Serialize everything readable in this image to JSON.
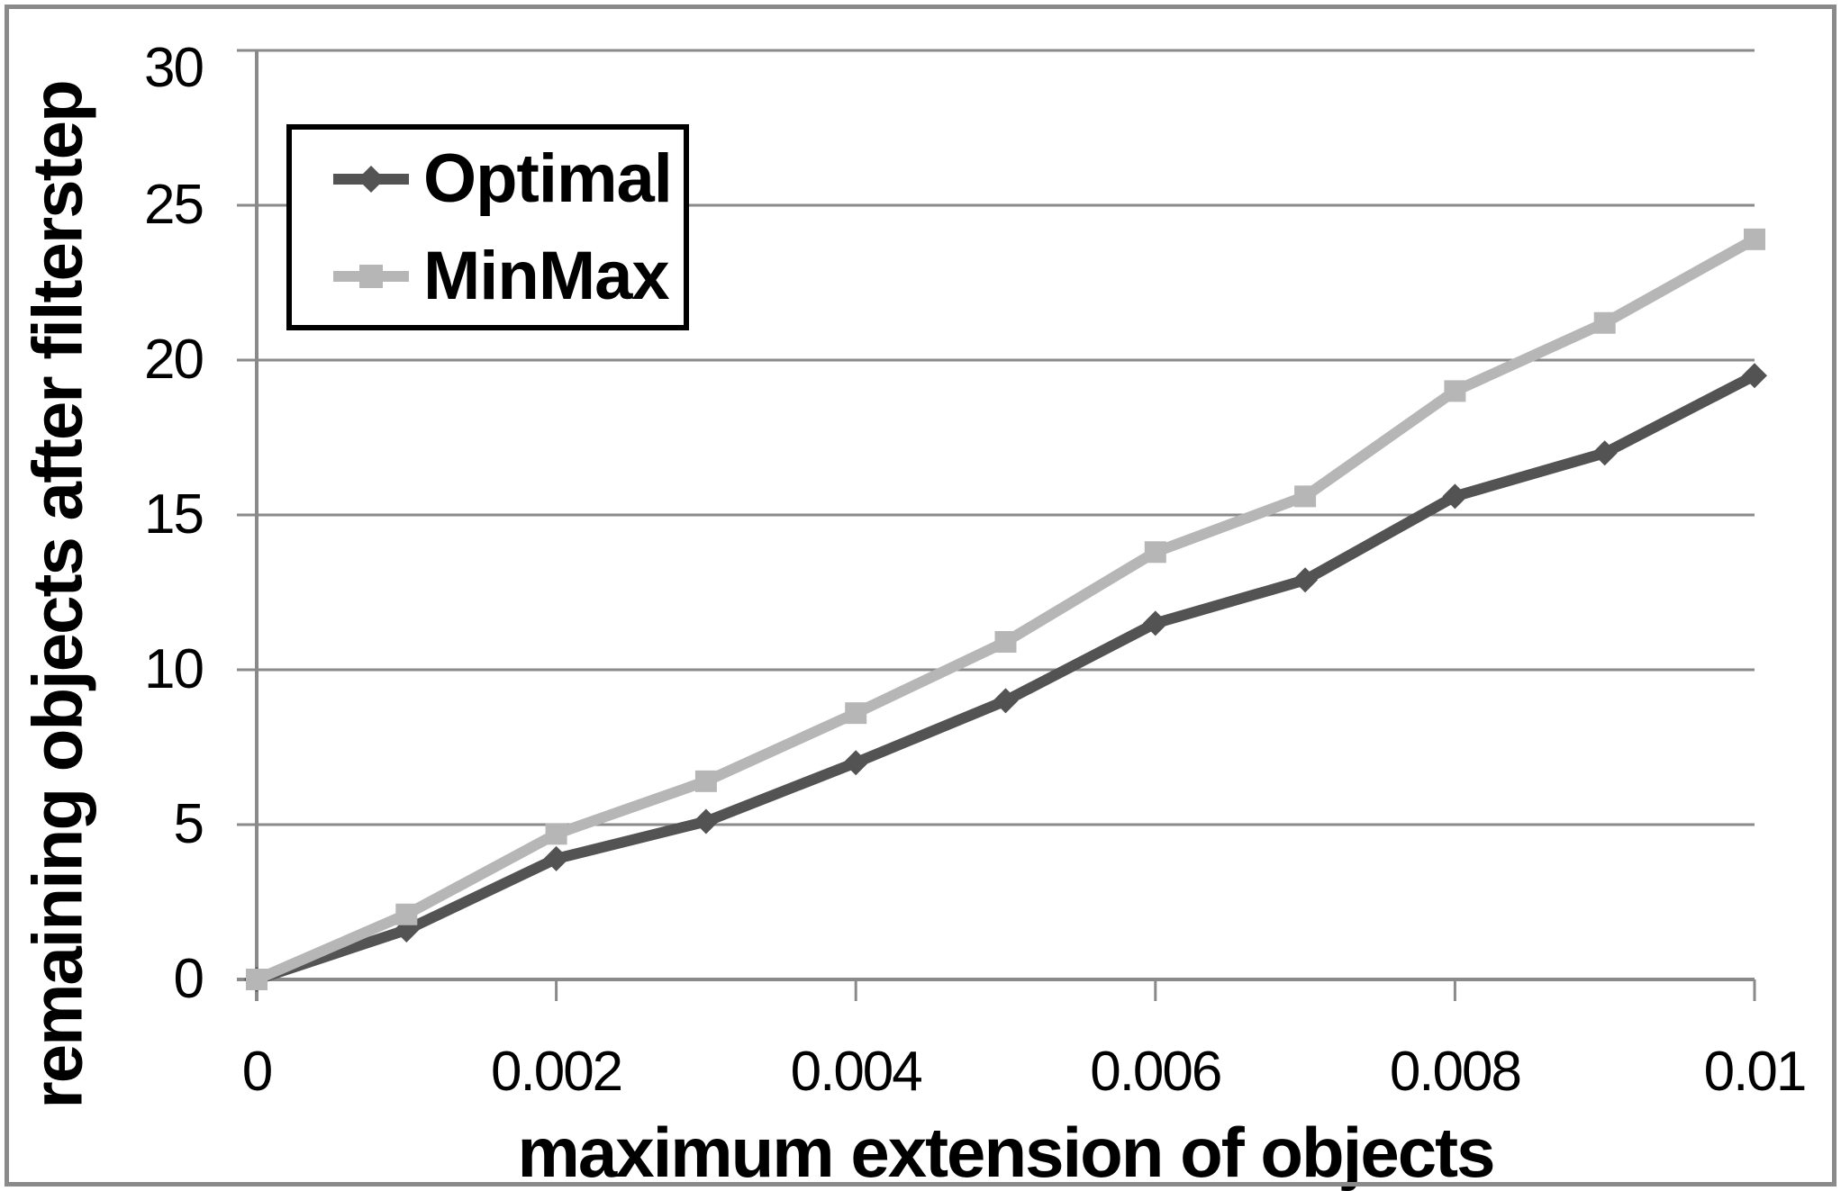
{
  "chart_data": {
    "type": "line",
    "x": [
      0,
      0.001,
      0.002,
      0.003,
      0.004,
      0.005,
      0.006,
      0.007,
      0.008,
      0.009,
      0.01
    ],
    "series": [
      {
        "name": "Optimal",
        "marker": "diamond",
        "color": "#535353",
        "values": [
          0,
          1.6,
          3.9,
          5.1,
          7.0,
          9.0,
          11.5,
          12.9,
          15.6,
          17.0,
          19.5
        ]
      },
      {
        "name": "MinMax",
        "marker": "square",
        "color": "#b6b6b6",
        "values": [
          0,
          2.1,
          4.7,
          6.4,
          8.6,
          10.9,
          13.8,
          15.6,
          19.0,
          21.2,
          23.9
        ]
      }
    ],
    "title": "",
    "xlabel": "maximum extension of objects",
    "ylabel": "remaining objects after filterstep",
    "x_tick_labels": [
      "0",
      "0.002",
      "0.004",
      "0.006",
      "0.008",
      "0.01"
    ],
    "y_tick_labels": [
      "30",
      "25",
      "20",
      "15",
      "10",
      "5",
      "0"
    ],
    "x_ticks": [
      0,
      0.002,
      0.004,
      0.006,
      0.008,
      0.01
    ],
    "y_gridlines": [
      30,
      25,
      20,
      15,
      10,
      5,
      0
    ],
    "xlim": [
      0,
      0.01
    ],
    "ylim": [
      0,
      30
    ],
    "grid": "horizontal-only",
    "legend_position": "top-left-inside",
    "background_color": "#ffffff",
    "grid_color": "#8a8a8a",
    "axis_color": "#8a8a8a",
    "text_color": "#000000",
    "legend_border_color": "#000000",
    "frame_border_color": "#8a8a8a"
  }
}
